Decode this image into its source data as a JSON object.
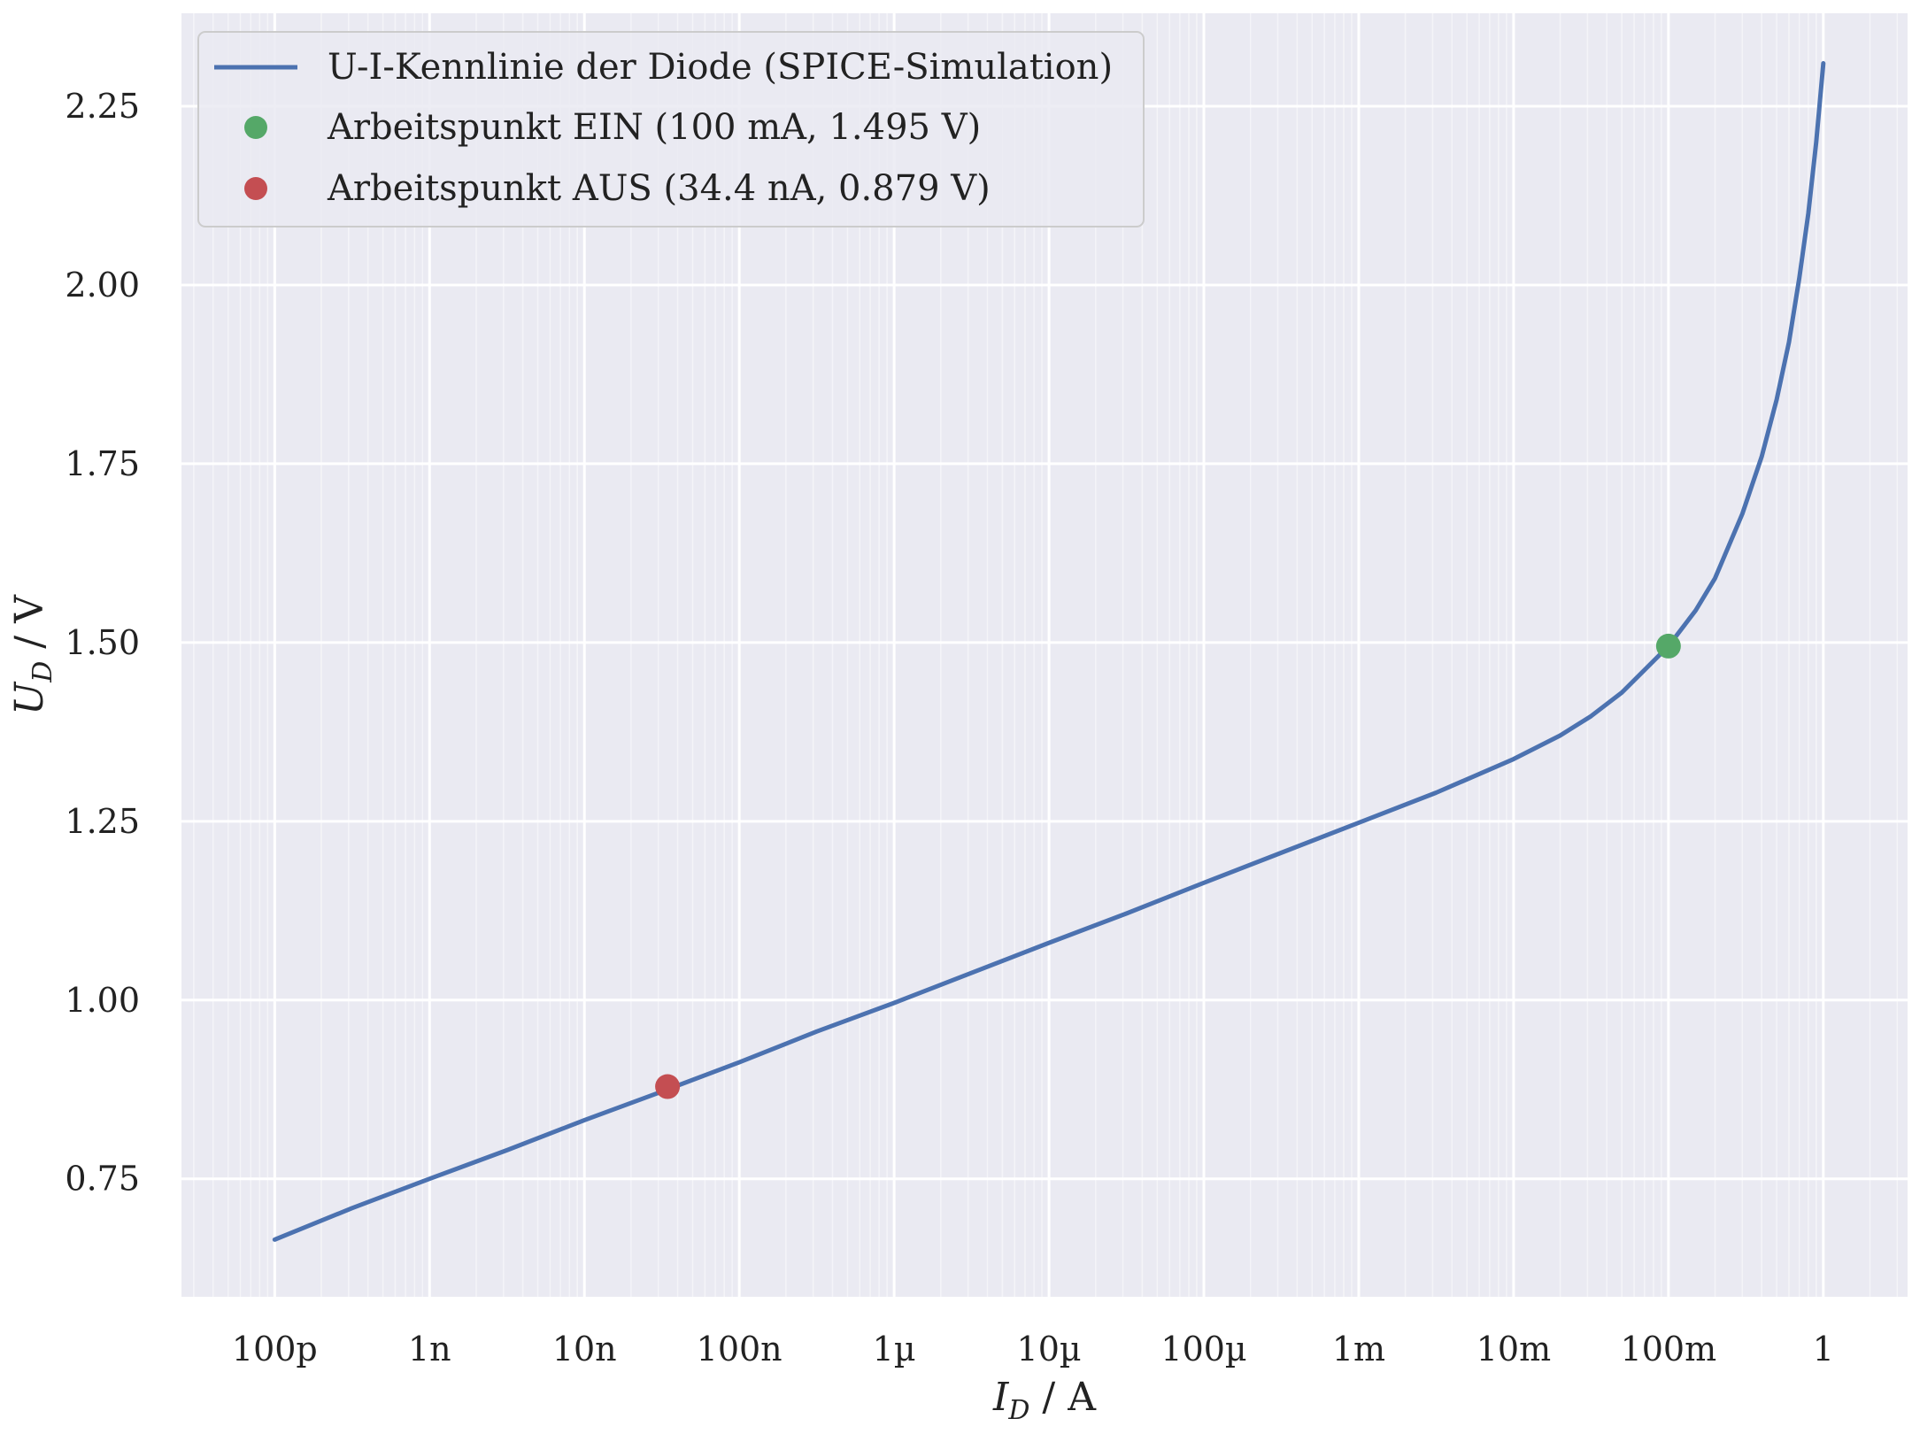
{
  "chart_data": {
    "type": "line",
    "xscale": "log",
    "xlim": [
      2.5e-11,
      3.5
    ],
    "ylim": [
      0.585,
      2.38
    ],
    "grid": true,
    "legend_position": "top-left",
    "xlabel": {
      "main": "I",
      "sub": "D",
      "unit": " / A"
    },
    "ylabel": {
      "main": "U",
      "sub": "D",
      "unit": " / V"
    },
    "x_ticks": [
      {
        "value": 1e-10,
        "label": "100p"
      },
      {
        "value": 1e-09,
        "label": "1n"
      },
      {
        "value": 1e-08,
        "label": "10n"
      },
      {
        "value": 1e-07,
        "label": "100n"
      },
      {
        "value": 1e-06,
        "label": "1µ"
      },
      {
        "value": 1e-05,
        "label": "10µ"
      },
      {
        "value": 0.0001,
        "label": "100µ"
      },
      {
        "value": 0.001,
        "label": "1m"
      },
      {
        "value": 0.01,
        "label": "10m"
      },
      {
        "value": 0.1,
        "label": "100m"
      },
      {
        "value": 1,
        "label": "1"
      }
    ],
    "y_ticks": [
      {
        "value": 0.75,
        "label": "0.75"
      },
      {
        "value": 1.0,
        "label": "1.00"
      },
      {
        "value": 1.25,
        "label": "1.25"
      },
      {
        "value": 1.5,
        "label": "1.50"
      },
      {
        "value": 1.75,
        "label": "1.75"
      },
      {
        "value": 2.0,
        "label": "2.00"
      },
      {
        "value": 2.25,
        "label": "2.25"
      }
    ],
    "series": [
      {
        "name": "U-I-Kennlinie der Diode (SPICE-Simulation)",
        "kind": "line",
        "color": "#4c72b0",
        "x": [
          1e-10,
          3.16e-10,
          1e-09,
          3.16e-09,
          1e-08,
          3.16e-08,
          1e-07,
          3.16e-07,
          1e-06,
          3.16e-06,
          1e-05,
          3.16e-05,
          0.0001,
          0.000316,
          0.001,
          0.00316,
          0.01,
          0.02,
          0.0316,
          0.05,
          0.1,
          0.15,
          0.2,
          0.3,
          0.4,
          0.5,
          0.6,
          0.7,
          0.8,
          0.9,
          1.0
        ],
        "y": [
          0.665,
          0.709,
          0.75,
          0.79,
          0.832,
          0.872,
          0.913,
          0.956,
          0.996,
          1.038,
          1.08,
          1.121,
          1.164,
          1.206,
          1.248,
          1.29,
          1.337,
          1.37,
          1.397,
          1.43,
          1.495,
          1.545,
          1.59,
          1.68,
          1.76,
          1.84,
          1.92,
          2.01,
          2.1,
          2.2,
          2.31
        ]
      },
      {
        "name": "Arbeitspunkt EIN (100 mA, 1.495 V)",
        "kind": "point",
        "color": "#55a868",
        "x": [
          0.1
        ],
        "y": [
          1.495
        ]
      },
      {
        "name": "Arbeitspunkt AUS (34.4 nA, 0.879 V)",
        "kind": "point",
        "color": "#c44e52",
        "x": [
          3.44e-08
        ],
        "y": [
          0.879
        ]
      }
    ]
  },
  "colors": {
    "plot_background": "#eaeaf2",
    "grid_major": "#ffffff",
    "grid_minor": "#f4f4f8"
  }
}
